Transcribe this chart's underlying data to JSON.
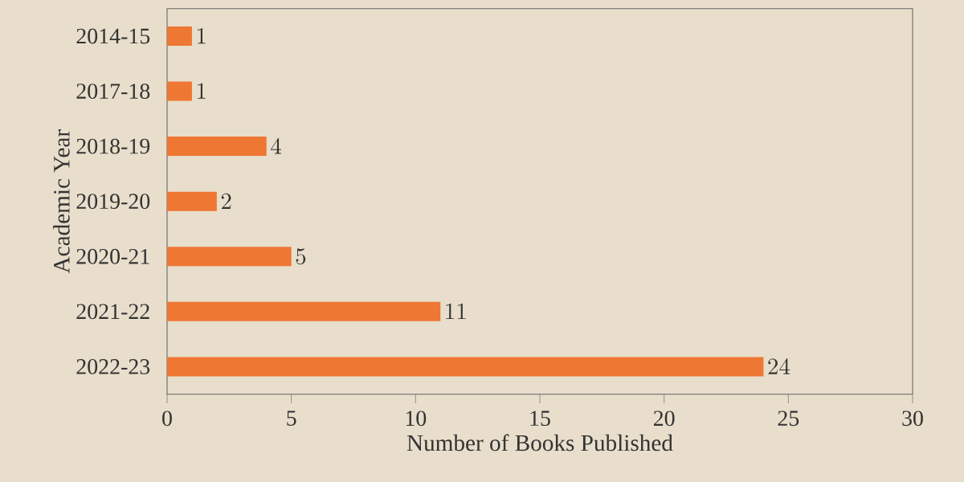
{
  "chart_data": {
    "type": "bar",
    "orientation": "horizontal",
    "xlabel": "Number of Books Published",
    "ylabel": "Academic Year",
    "categories": [
      "2014-15",
      "2017-18",
      "2018-19",
      "2019-20",
      "2020-21",
      "2021-22",
      "2022-23"
    ],
    "values": [
      1,
      1,
      4,
      2,
      5,
      11,
      24
    ],
    "color": "#ee7733",
    "xlim": [
      0,
      30
    ],
    "xticks": [
      0,
      5,
      10,
      15,
      20,
      25,
      30
    ],
    "data_labels": true,
    "grid": false
  }
}
